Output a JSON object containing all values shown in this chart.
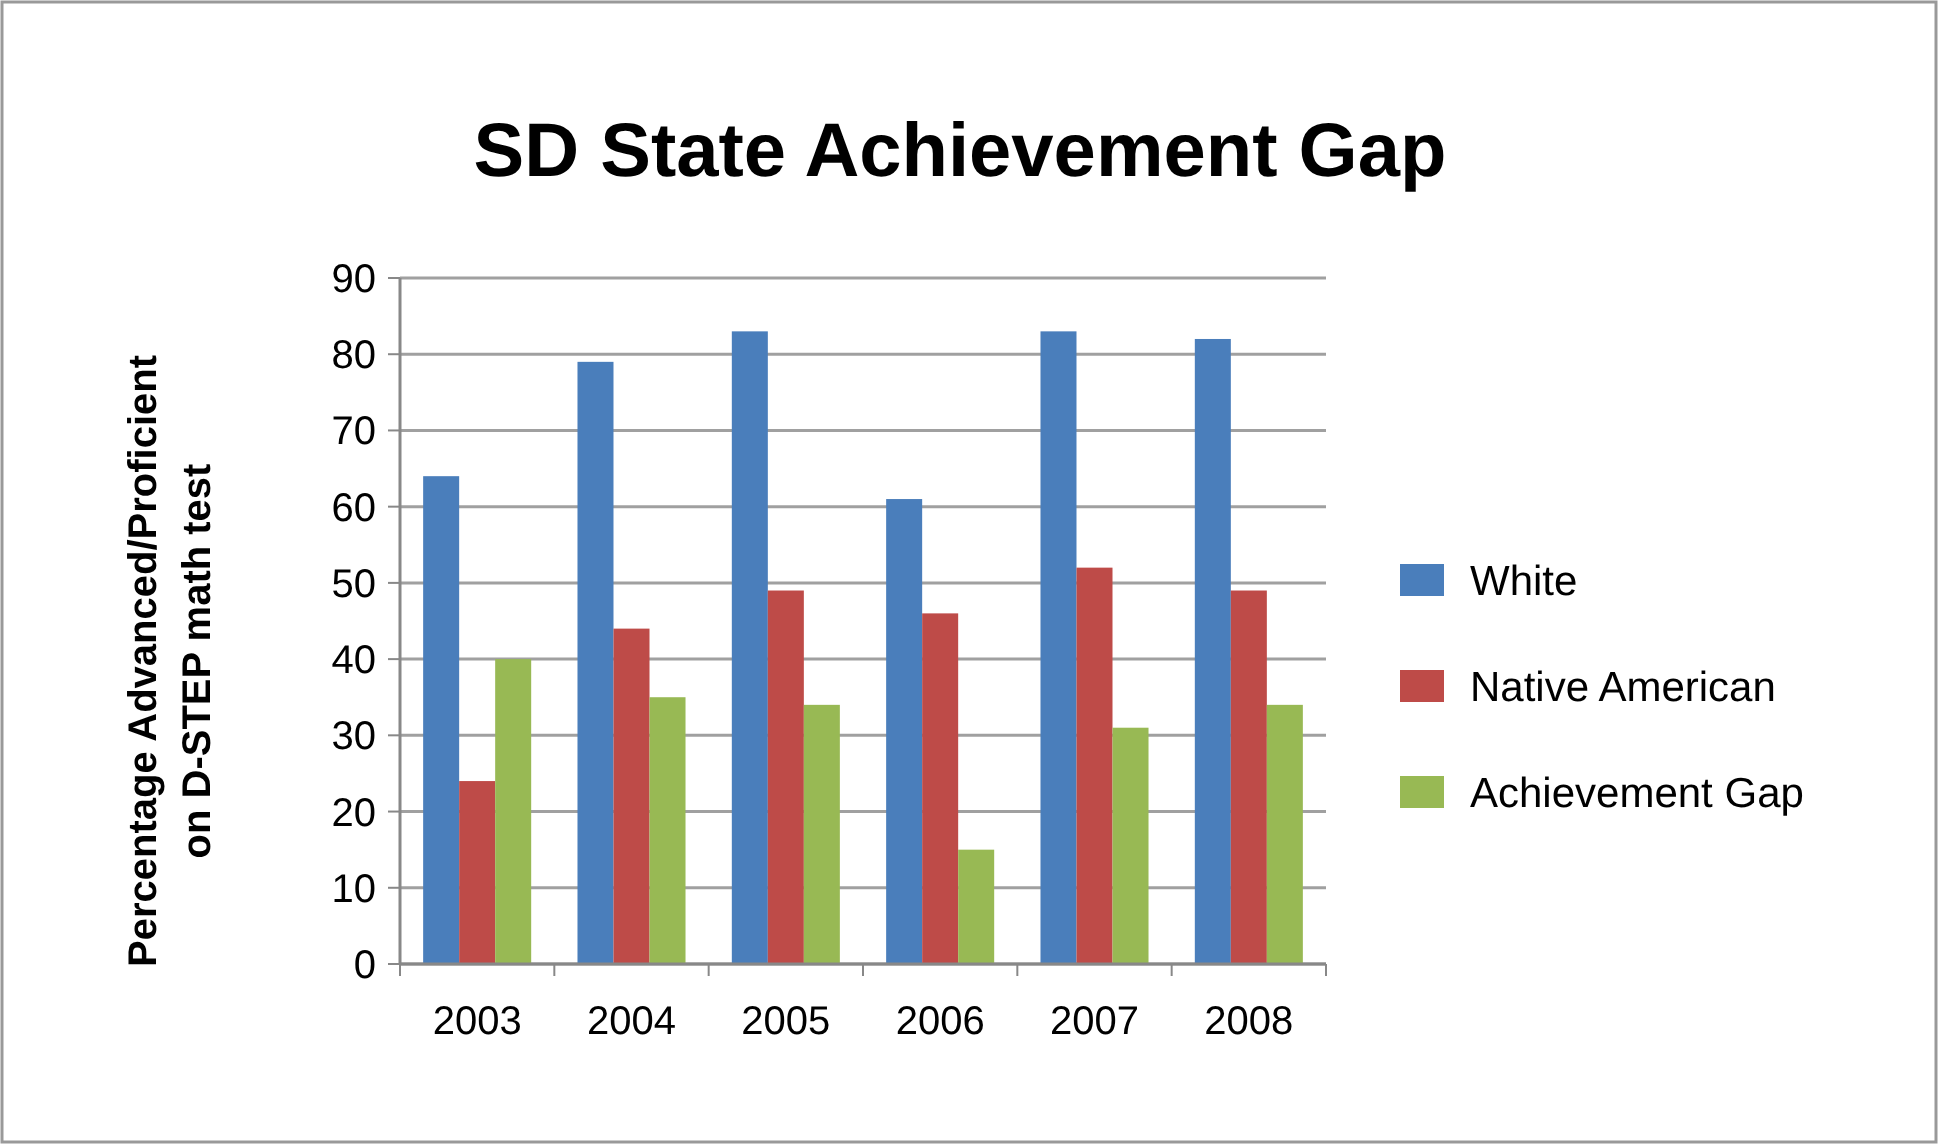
{
  "chart_data": {
    "type": "bar",
    "title": "SD State Achievement Gap",
    "ylabel": "Percentage Advanced/Proficient\non D-STEP math test",
    "categories": [
      "2003",
      "2004",
      "2005",
      "2006",
      "2007",
      "2008"
    ],
    "series": [
      {
        "name": "White",
        "color": "#4a7ebb",
        "values": [
          64,
          79,
          83,
          61,
          83,
          82
        ]
      },
      {
        "name": "Native American",
        "color": "#be4b48",
        "values": [
          24,
          44,
          49,
          46,
          52,
          49
        ]
      },
      {
        "name": "Achievement Gap",
        "color": "#98b954",
        "values": [
          40,
          35,
          34,
          15,
          31,
          34
        ]
      }
    ],
    "ylim": [
      0,
      90
    ],
    "yticks": [
      0,
      10,
      20,
      30,
      40,
      50,
      60,
      70,
      80,
      90
    ],
    "grid": "y",
    "legend": "right"
  }
}
